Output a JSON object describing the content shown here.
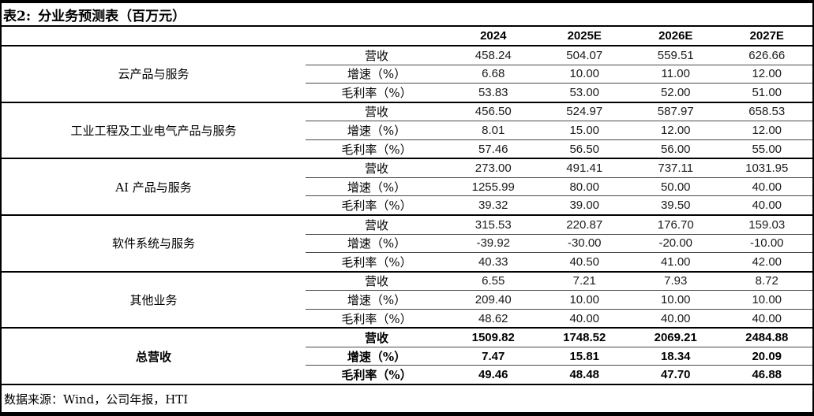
{
  "title": {
    "tag": "表2:",
    "text": "分业务预测表（百万元）"
  },
  "columns": [
    "2024",
    "2025E",
    "2026E",
    "2027E"
  ],
  "sections": [
    {
      "name": "云产品与服务",
      "bold": false,
      "rows": [
        {
          "label": "营收",
          "values": [
            "458.24",
            "504.07",
            "559.51",
            "626.66"
          ]
        },
        {
          "label": "增速（%）",
          "values": [
            "6.68",
            "10.00",
            "11.00",
            "12.00"
          ]
        },
        {
          "label": "毛利率（%）",
          "values": [
            "53.83",
            "53.00",
            "52.00",
            "51.00"
          ]
        }
      ]
    },
    {
      "name": "工业工程及工业电气产品与服务",
      "bold": false,
      "rows": [
        {
          "label": "营收",
          "values": [
            "456.50",
            "524.97",
            "587.97",
            "658.53"
          ]
        },
        {
          "label": "增速（%）",
          "values": [
            "8.01",
            "15.00",
            "12.00",
            "12.00"
          ]
        },
        {
          "label": "毛利率（%）",
          "values": [
            "57.46",
            "56.50",
            "56.00",
            "55.00"
          ]
        }
      ]
    },
    {
      "name": "AI 产品与服务",
      "bold": false,
      "rows": [
        {
          "label": "营收",
          "values": [
            "273.00",
            "491.41",
            "737.11",
            "1031.95"
          ]
        },
        {
          "label": "增速（%）",
          "values": [
            "1255.99",
            "80.00",
            "50.00",
            "40.00"
          ]
        },
        {
          "label": "毛利率（%）",
          "values": [
            "39.32",
            "39.00",
            "39.50",
            "40.00"
          ]
        }
      ]
    },
    {
      "name": "软件系统与服务",
      "bold": false,
      "rows": [
        {
          "label": "营收",
          "values": [
            "315.53",
            "220.87",
            "176.70",
            "159.03"
          ]
        },
        {
          "label": "增速（%）",
          "values": [
            "-39.92",
            "-30.00",
            "-20.00",
            "-10.00"
          ]
        },
        {
          "label": "毛利率（%）",
          "values": [
            "40.33",
            "40.50",
            "41.00",
            "42.00"
          ]
        }
      ]
    },
    {
      "name": "其他业务",
      "bold": false,
      "rows": [
        {
          "label": "营收",
          "values": [
            "6.55",
            "7.21",
            "7.93",
            "8.72"
          ]
        },
        {
          "label": "增速（%）",
          "values": [
            "209.40",
            "10.00",
            "10.00",
            "10.00"
          ]
        },
        {
          "label": "毛利率（%）",
          "values": [
            "48.62",
            "40.00",
            "40.00",
            "40.00"
          ]
        }
      ]
    },
    {
      "name": "总营收",
      "bold": true,
      "rows": [
        {
          "label": "营收",
          "values": [
            "1509.82",
            "1748.52",
            "2069.21",
            "2484.88"
          ]
        },
        {
          "label": "增速（%）",
          "values": [
            "7.47",
            "15.81",
            "18.34",
            "20.09"
          ]
        },
        {
          "label": "毛利率（%）",
          "values": [
            "49.46",
            "48.48",
            "47.70",
            "46.88"
          ]
        }
      ]
    }
  ],
  "footer": {
    "source": "数据来源：Wind，公司年报，HTI"
  },
  "colors": {
    "border": "#000000",
    "thin_divider": "#4a4a4a",
    "text": "#1a1a1a"
  }
}
